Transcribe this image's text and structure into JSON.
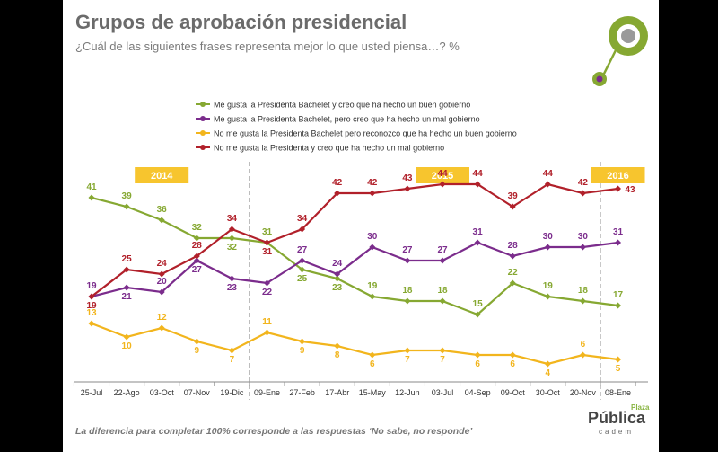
{
  "header": {
    "title": "Grupos de aprobación presidencial",
    "subtitle": "¿Cuál de las siguientes frases representa mejor lo que usted piensa…? %"
  },
  "footer": {
    "note": "La diferencia para completar 100% corresponde a las respuestas ‘No sabe, no responde’",
    "brand_main": "Pública",
    "brand_small": "Plaza",
    "brand_sub": "cadem"
  },
  "colors": {
    "green": "#86a832",
    "purple": "#7b2c8c",
    "yellow": "#f2b51d",
    "red": "#b1202a",
    "year_badge": "#f7c52e"
  },
  "chart_data": {
    "type": "line",
    "categories": [
      "25-Jul",
      "22-Ago",
      "03-Oct",
      "07-Nov",
      "19-Dic",
      "09-Ene",
      "27-Feb",
      "17-Abr",
      "15-May",
      "12-Jun",
      "03-Jul",
      "04-Sep",
      "09-Oct",
      "30-Oct",
      "20-Nov",
      "08-Ene"
    ],
    "year_labels": [
      {
        "label": "2014",
        "category_index": 2
      },
      {
        "label": "2015",
        "category_index": 10
      },
      {
        "label": "2016",
        "category_index": 15
      }
    ],
    "year_dividers_after_index": [
      4,
      14
    ],
    "ylim": [
      0,
      50
    ],
    "grid": false,
    "legend_placement": "top",
    "series": [
      {
        "name": "Me gusta la Presidenta Bachelet y creo que ha hecho un buen gobierno",
        "color": "#86a832",
        "values": [
          41,
          39,
          36,
          32,
          32,
          31,
          25,
          23,
          19,
          18,
          18,
          15,
          22,
          19,
          18,
          17
        ]
      },
      {
        "name": "Me gusta la Presidenta Bachelet, pero creo que ha hecho un mal gobierno",
        "color": "#7b2c8c",
        "values": [
          19,
          21,
          20,
          27,
          23,
          22,
          27,
          24,
          30,
          27,
          27,
          31,
          28,
          30,
          30,
          31
        ]
      },
      {
        "name": "No me gusta la Presidenta Bachelet pero reconozco que ha hecho un buen gobierno",
        "color": "#f2b51d",
        "values": [
          13,
          10,
          12,
          9,
          7,
          11,
          9,
          8,
          6,
          7,
          7,
          6,
          6,
          4,
          6,
          5
        ]
      },
      {
        "name": "No me gusta la Presidenta y creo que ha hecho un mal gobierno",
        "color": "#b1202a",
        "values": [
          19,
          25,
          24,
          28,
          34,
          31,
          34,
          42,
          42,
          43,
          44,
          44,
          39,
          44,
          42,
          43
        ]
      }
    ]
  }
}
